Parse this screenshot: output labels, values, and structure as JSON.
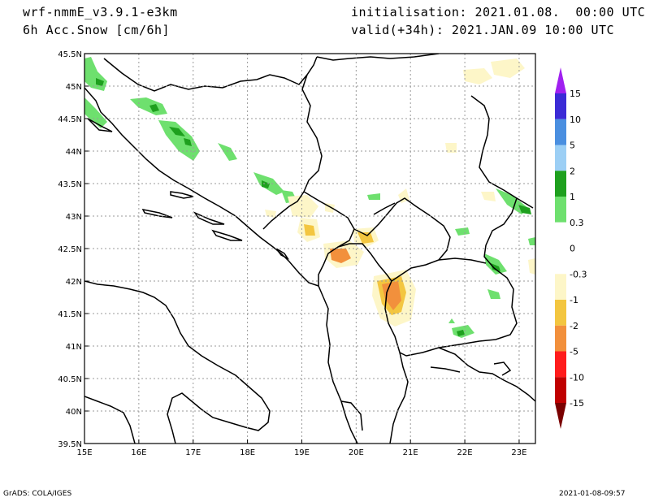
{
  "header": {
    "model": "wrf-nmmE_v3.9.1-e3km",
    "field": "6h Acc.Snow [cm/6h]",
    "init": "initialisation: 2021.01.08.  00:00 UTC",
    "valid": "valid(+34h): 2021.JAN.09 10:00 UTC"
  },
  "map": {
    "lon_range": [
      15,
      23.3
    ],
    "lat_range": [
      39.5,
      45.5
    ],
    "lon_ticks": [
      "15E",
      "16E",
      "17E",
      "18E",
      "19E",
      "20E",
      "21E",
      "22E",
      "23E"
    ],
    "lat_ticks": [
      "39.5N",
      "40N",
      "40.5N",
      "41N",
      "41.5N",
      "42N",
      "42.5N",
      "43N",
      "43.5N",
      "44N",
      "44.5N",
      "45N",
      "45.5N"
    ],
    "grid": true
  },
  "colorbar": {
    "labels": [
      "15",
      "10",
      "5",
      "2",
      "1",
      "0.3",
      "0",
      "-0.3",
      "-1",
      "-2",
      "-5",
      "-10",
      "-15"
    ],
    "colors": [
      "#3b2bd6",
      "#4a8fe0",
      "#9ccff5",
      "#1ea01e",
      "#6ee06e",
      "#ffffff",
      "#ffffff",
      "#fdf6c8",
      "#f3c640",
      "#f2903c",
      "#ff1c1c",
      "#c00000",
      "#8a0000"
    ],
    "top_cap_color": "#a020f0",
    "bottom_cap_color": "#7a0000"
  },
  "footer": {
    "left": "GrADS: COLA/IGES",
    "right": "2021-01-08-09:57"
  }
}
